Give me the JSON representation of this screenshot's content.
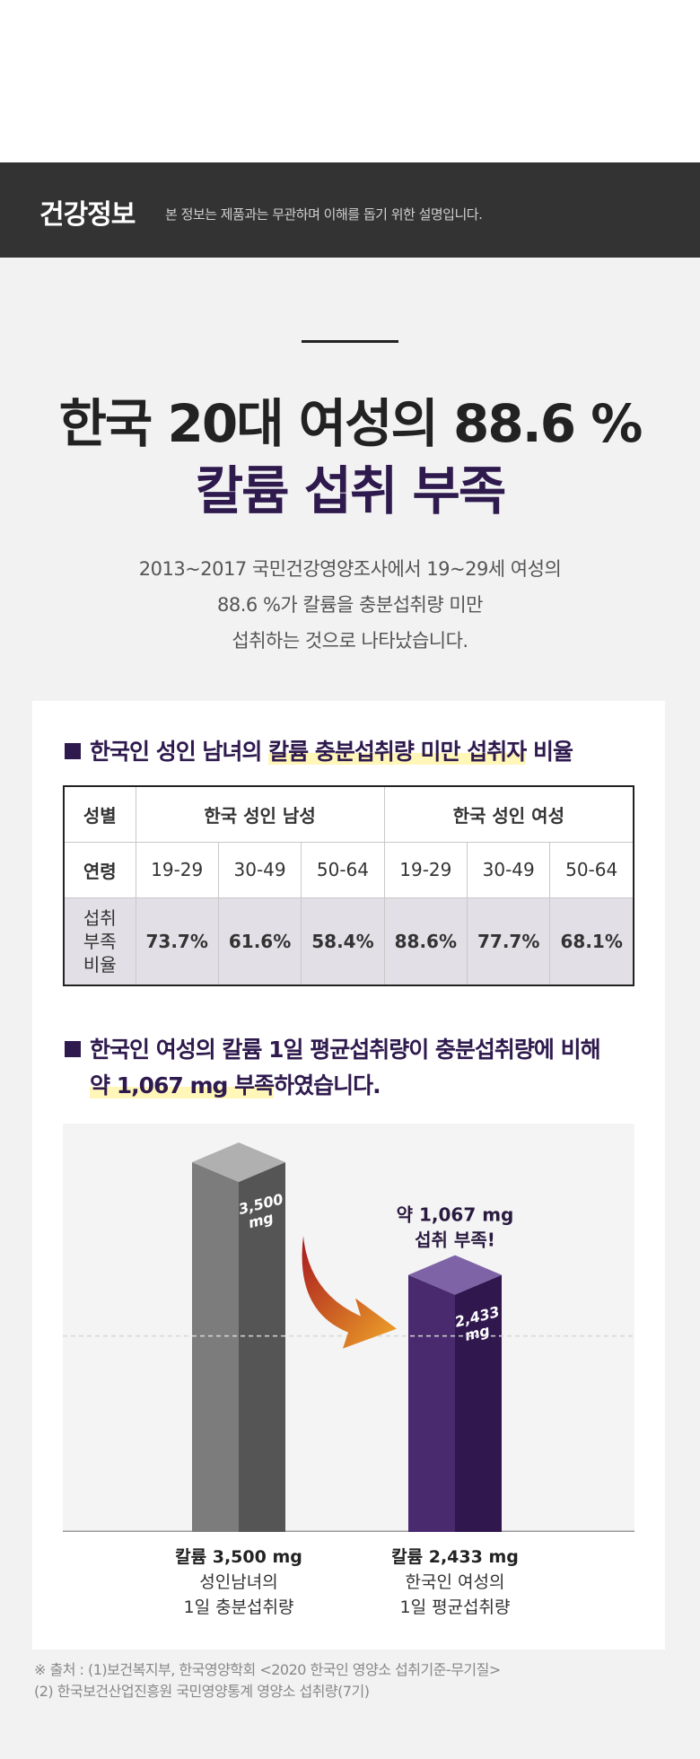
{
  "header": {
    "title": "건강정보",
    "subtitle": "본 정보는 제품과는 무관하며 이해를 돕기 위한 설명입니다."
  },
  "headline": {
    "line1": "한국 20대 여성의 88.6 %",
    "line2": "칼륨 섭취 부족"
  },
  "intro": [
    "2013~2017 국민건강영양조사에서 19~29세 여성의",
    "88.6 %가 칼륨을 충분섭취량 미만",
    "섭취하는 것으로 나타났습니다."
  ],
  "table_section": {
    "title_prefix": "한국인 성인 남녀의 ",
    "title_highlight": "칼륨 충분섭취량 미만 섭취자",
    "title_suffix": " 비율",
    "row_gender_label": "성별",
    "gender_male": "한국 성인 남성",
    "gender_female": "한국 성인 여성",
    "row_age_label": "연령",
    "ages": [
      "19-29",
      "30-49",
      "50-64",
      "19-29",
      "30-49",
      "50-64"
    ],
    "row_rate_label": [
      "섭취",
      "부족",
      "비율"
    ],
    "rates": [
      "73.7%",
      "61.6%",
      "58.4%",
      "88.6%",
      "77.7%",
      "68.1%"
    ]
  },
  "chart_section": {
    "title_line1": "한국인 여성의 칼륨 1일 평균섭취량이 충분섭취량에 비해",
    "title_line2_highlight": "약 1,067 mg 부족",
    "title_line2_suffix": "하였습니다.",
    "deficit_line1": "약 1,067 mg",
    "deficit_line2": "섭취 부족!"
  },
  "chart_data": {
    "type": "bar",
    "categories": [
      "성인남녀의 1일 충분섭취량",
      "한국인 여성의 1일 평균섭취량"
    ],
    "values": [
      3500,
      2433
    ],
    "value_labels": [
      "3,500",
      "2,433"
    ],
    "unit_label": "mg",
    "bar_titles": [
      "칼륨 3,500 mg",
      "칼륨 2,433 mg"
    ],
    "bar_sub_line1": [
      "성인남녀의",
      "한국인 여성의"
    ],
    "bar_sub_line2": [
      "1일 충분섭취량",
      "1일 평균섭취량"
    ],
    "colors": {
      "bar1_front": "#7c7c7c",
      "bar1_side": "#555555",
      "bar1_top": "#b0b0b0",
      "bar2_front": "#4a2a6e",
      "bar2_side": "#30184f",
      "bar2_top": "#7e64a6",
      "arrow_start": "#a8181e",
      "arrow_end": "#f0a72a"
    },
    "ylim": [
      0,
      3500
    ]
  },
  "source": {
    "line1": "※ 출처 : (1)보건복지부, 한국영양학회 <2020 한국인 영양소 섭취기준-무기질>",
    "line2": "(2) 한국보건산업진흥원 국민영양통계 영양소 섭취량(7기)"
  }
}
